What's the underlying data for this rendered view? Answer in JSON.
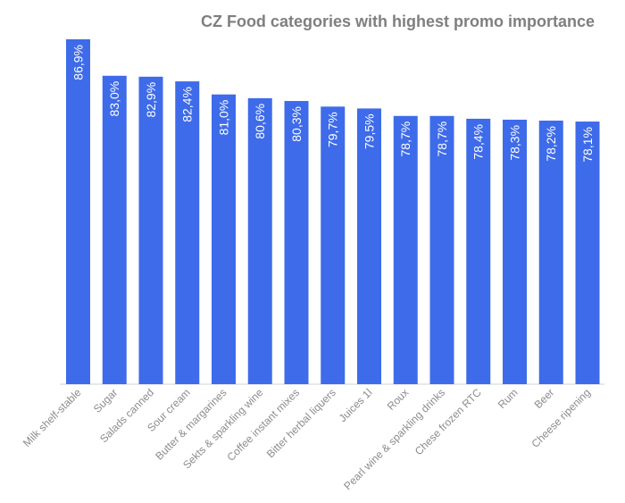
{
  "chart_data": {
    "type": "bar",
    "title": "CZ Food categories with highest promo importance",
    "categories": [
      "Milk shelf-stable",
      "Sugar",
      "Salads canned",
      "Sour cream",
      "Butter & margarines",
      "Sekts & sparkling wine",
      "Coffee instant mixes",
      "Bitter herbal liquers",
      "Juices 1l",
      "Roux",
      "Pearl wine & sparkling drinks",
      "Chese frozen RTC",
      "Rum",
      "Beer",
      "Cheese ripening"
    ],
    "values": [
      86.9,
      83.0,
      82.9,
      82.4,
      81.0,
      80.6,
      80.3,
      79.7,
      79.5,
      78.7,
      78.7,
      78.4,
      78.3,
      78.2,
      78.1
    ],
    "data_labels": [
      "86,9%",
      "83,0%",
      "82,9%",
      "82,4%",
      "81,0%",
      "80,6%",
      "80,3%",
      "79,7%",
      "79,5%",
      "78,7%",
      "78,7%",
      "78,4%",
      "78,3%",
      "78,2%",
      "78,1%"
    ],
    "xlabel": "",
    "ylabel": "",
    "ylim": [
      50,
      86.9
    ],
    "grid": false,
    "legend": "none",
    "colors": {
      "bar": "#3e6be9",
      "title": "#7f7f7f",
      "tick_label": "#8c8c8c",
      "axis": "#e0e0e0"
    }
  }
}
